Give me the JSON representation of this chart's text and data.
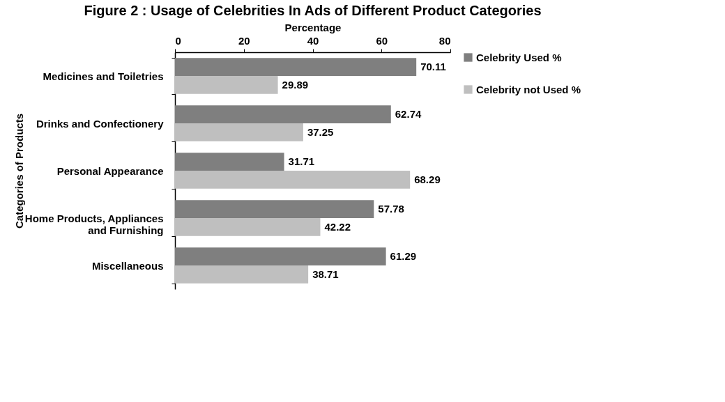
{
  "chart_data": {
    "type": "bar",
    "orientation": "horizontal",
    "title": "Figure 2 : Usage of Celebrities In Ads of Different Product Categories",
    "xlabel": "Percentage",
    "ylabel": "Categories of Products",
    "categories": [
      "Medicines and Toiletries",
      "Drinks and Confectionery",
      "Personal Appearance",
      "Home Products, Appliances\nand Furnishing",
      "Miscellaneous"
    ],
    "series": [
      {
        "name": "Celebrity Used %",
        "color": "#7f7f7f",
        "values": [
          70.11,
          62.74,
          31.71,
          57.78,
          61.29
        ]
      },
      {
        "name": "Celebrity not Used %",
        "color": "#bfbfbf",
        "values": [
          29.89,
          37.25,
          68.29,
          42.22,
          38.71
        ]
      }
    ],
    "xlim": [
      0,
      80
    ],
    "xticks": [
      0,
      20,
      40,
      60,
      80
    ],
    "data_labels": true,
    "grid": false,
    "legend": "right"
  }
}
